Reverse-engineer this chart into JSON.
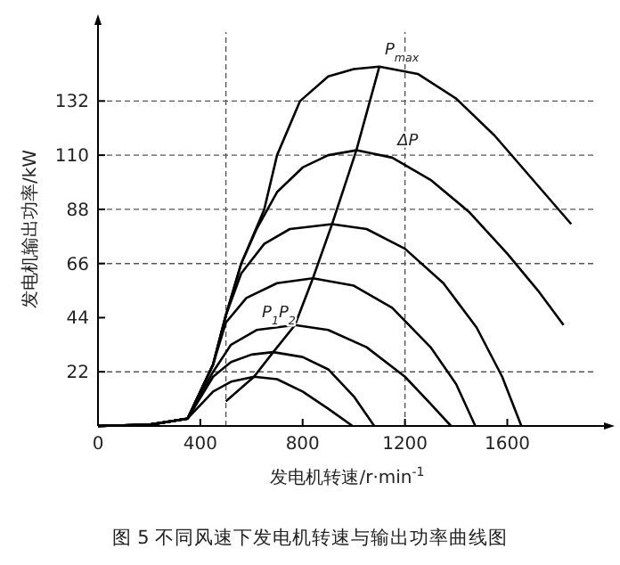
{
  "chart_data": {
    "type": "line",
    "title": "图 5 不同风速下发电机转速与输出功率曲线图",
    "xlabel": "发电机转速/r·min$^{-1}$",
    "ylabel": "发电机输出功率/kW",
    "xlim": [
      0,
      1950
    ],
    "ylim": [
      0,
      160
    ],
    "xticks": [
      0,
      400,
      800,
      1200,
      1600
    ],
    "yticks": [
      22,
      44,
      66,
      88,
      110,
      132
    ],
    "marker": "none",
    "line_style": "solid",
    "grid": false,
    "series": [
      {
        "color": "#000000",
        "x": [
          0,
          200,
          350,
          450,
          500,
          560,
          650,
          700,
          790,
          900,
          1000,
          1100,
          1250,
          1400,
          1550,
          1700,
          1850
        ],
        "values": [
          0,
          0.5,
          3,
          25,
          45,
          66,
          88,
          110,
          132,
          142,
          145,
          146,
          143,
          133,
          118,
          100,
          82
        ]
      },
      {
        "color": "#000000",
        "x": [
          0,
          200,
          350,
          450,
          500,
          560,
          620,
          700,
          800,
          900,
          1010,
          1150,
          1300,
          1450,
          1600,
          1720,
          1820
        ],
        "values": [
          0,
          0.5,
          3,
          25,
          45,
          66,
          80,
          95,
          105,
          110,
          112,
          109,
          100,
          87,
          70,
          55,
          41
        ]
      },
      {
        "color": "#000000",
        "x": [
          0,
          200,
          350,
          450,
          500,
          560,
          650,
          750,
          915,
          1050,
          1200,
          1350,
          1480,
          1580,
          1655
        ],
        "values": [
          0,
          0.5,
          3,
          25,
          45,
          62,
          74,
          80,
          82,
          80,
          72,
          58,
          40,
          20,
          0
        ]
      },
      {
        "color": "#000000",
        "x": [
          0,
          200,
          350,
          450,
          500,
          580,
          700,
          840,
          1000,
          1150,
          1300,
          1400,
          1475
        ],
        "values": [
          0,
          0.5,
          3,
          25,
          42,
          52,
          58,
          60,
          57,
          48,
          32,
          17,
          0
        ]
      },
      {
        "color": "#000000",
        "x": [
          0,
          200,
          350,
          450,
          520,
          620,
          770,
          900,
          1050,
          1200,
          1300,
          1380
        ],
        "values": [
          0,
          0.5,
          3,
          22,
          33,
          39,
          41,
          39,
          32,
          20,
          9,
          0
        ]
      },
      {
        "color": "#000000",
        "x": [
          0,
          200,
          350,
          450,
          520,
          600,
          685,
          800,
          900,
          1000,
          1080
        ],
        "values": [
          0,
          0.5,
          3,
          20,
          26,
          29,
          30,
          28,
          23,
          12,
          0
        ]
      },
      {
        "color": "#000000",
        "x": [
          0,
          200,
          350,
          450,
          520,
          610,
          700,
          800,
          900,
          995
        ],
        "values": [
          0,
          0.5,
          3,
          14,
          18,
          20,
          19,
          14,
          7,
          0
        ]
      },
      {
        "color": "#000000",
        "x": [
          500,
          610,
          685,
          770,
          840,
          915,
          1010,
          1100
        ],
        "values": [
          10,
          20,
          30,
          41,
          60,
          82,
          112,
          146
        ]
      }
    ],
    "ref_lines": [
      {
        "axis": "y",
        "value": 132,
        "line_style": "dashed"
      },
      {
        "axis": "y",
        "value": 110,
        "line_style": "dashed"
      },
      {
        "axis": "y",
        "value": 88,
        "line_style": "dashed"
      },
      {
        "axis": "y",
        "value": 66,
        "line_style": "dashed"
      },
      {
        "axis": "y",
        "value": 22,
        "line_style": "dashed"
      },
      {
        "axis": "x",
        "value": 500,
        "line_style": "dashed"
      },
      {
        "axis": "x",
        "value": 1200,
        "line_style": "dashed"
      }
    ],
    "annotations": [
      {
        "text": "P$_{max}$",
        "x": 1100,
        "y": 146
      },
      {
        "text": "ΔP",
        "x": 1150,
        "y": 109
      },
      {
        "text": "P$_{1}$P$_{2}$",
        "x": 620,
        "y": 39
      }
    ]
  }
}
